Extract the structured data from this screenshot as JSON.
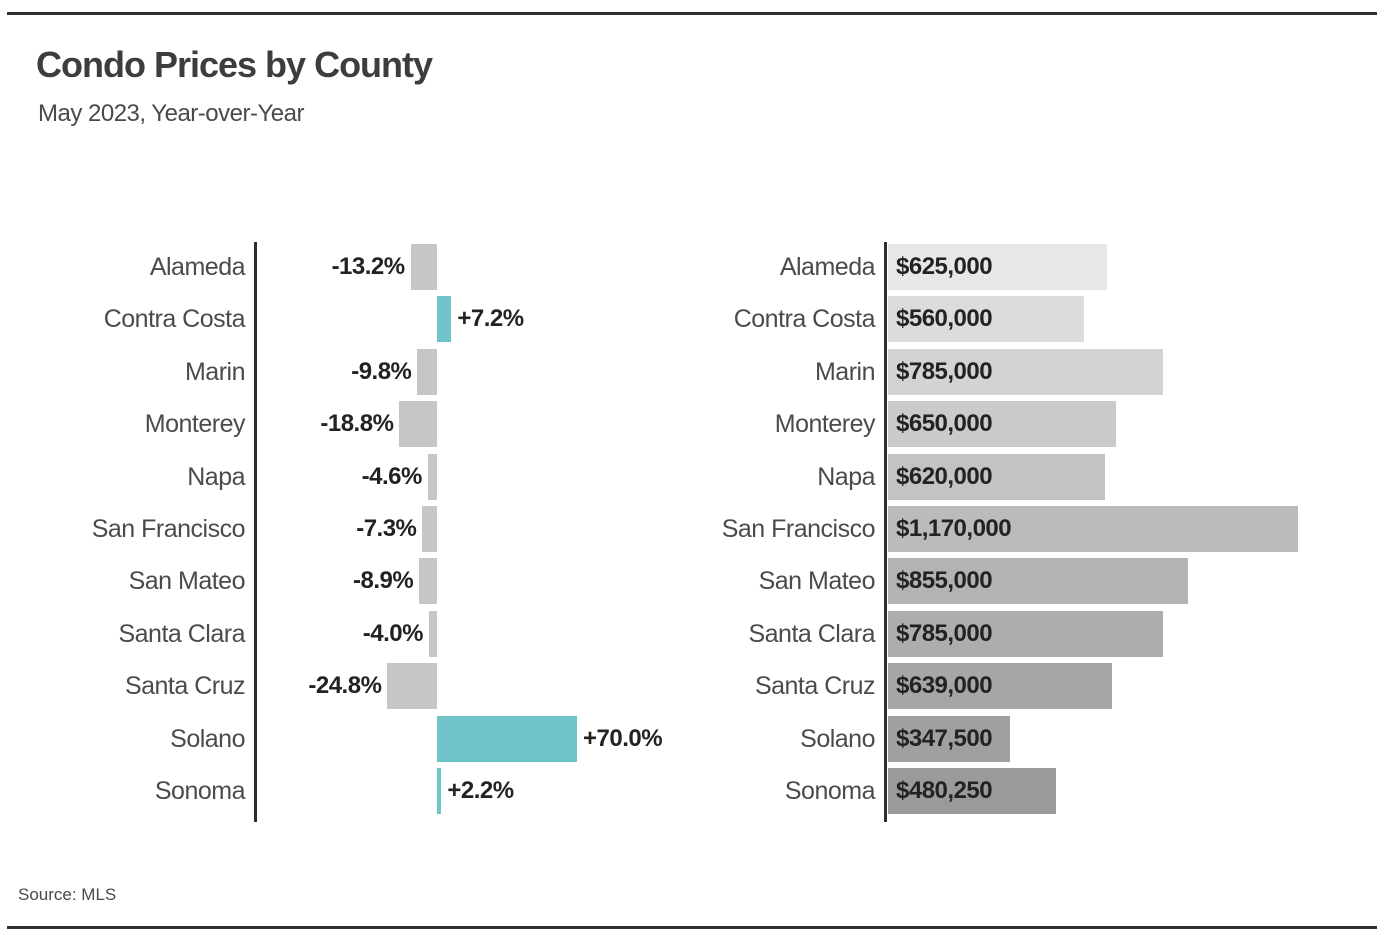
{
  "header": {
    "title": "Condo Prices by County",
    "subtitle": "May 2023, Year-over-Year"
  },
  "footer": {
    "source": "Source: MLS"
  },
  "colors": {
    "rule": "#2e2e2e",
    "axis": "#2e2e2e",
    "title_text": "#3d3d3d",
    "subtitle_text": "#4a4a4a",
    "category_text": "#4b4b4b",
    "value_text": "#222222",
    "background": "#ffffff"
  },
  "chart_data": [
    {
      "type": "bar",
      "orientation": "horizontal",
      "name": "year-over-year-percent-change",
      "categories": [
        "Alameda",
        "Contra Costa",
        "Marin",
        "Monterey",
        "Napa",
        "San Francisco",
        "San Mateo",
        "Santa Clara",
        "Santa Cruz",
        "Solano",
        "Sonoma"
      ],
      "values": [
        -13.2,
        7.2,
        -9.8,
        -18.8,
        -4.6,
        -7.3,
        -8.9,
        -4.0,
        -24.8,
        70.0,
        2.2
      ],
      "labels": [
        "-13.2%",
        "+7.2%",
        "-9.8%",
        "-18.8%",
        "-4.6%",
        "-7.3%",
        "-8.9%",
        "-4.0%",
        "-24.8%",
        "+70.0%",
        "+2.2%"
      ],
      "xlim": [
        -30,
        95
      ],
      "grid": false,
      "legend": false,
      "positive_color": "#6ec4c9",
      "negative_color": "#c6c6c6"
    },
    {
      "type": "bar",
      "orientation": "horizontal",
      "name": "median-condo-price",
      "categories": [
        "Alameda",
        "Contra Costa",
        "Marin",
        "Monterey",
        "Napa",
        "San Francisco",
        "San Mateo",
        "Santa Clara",
        "Santa Cruz",
        "Solano",
        "Sonoma"
      ],
      "values": [
        625000,
        560000,
        785000,
        650000,
        620000,
        1170000,
        855000,
        785000,
        639000,
        347500,
        480250
      ],
      "labels": [
        "$625,000",
        "$560,000",
        "$785,000",
        "$650,000",
        "$620,000",
        "$1,170,000",
        "$855,000",
        "$785,000",
        "$639,000",
        "$347,500",
        "$480,250"
      ],
      "xlim": [
        0,
        1450000
      ],
      "grid": false,
      "legend": false,
      "bar_colors": [
        "#e7e7e7",
        "#dcdcdc",
        "#d3d3d3",
        "#cbcbcb",
        "#c3c3c3",
        "#bbbbbb",
        "#b3b3b3",
        "#adadad",
        "#a6a6a6",
        "#a0a0a0",
        "#9a9a9a"
      ]
    }
  ]
}
